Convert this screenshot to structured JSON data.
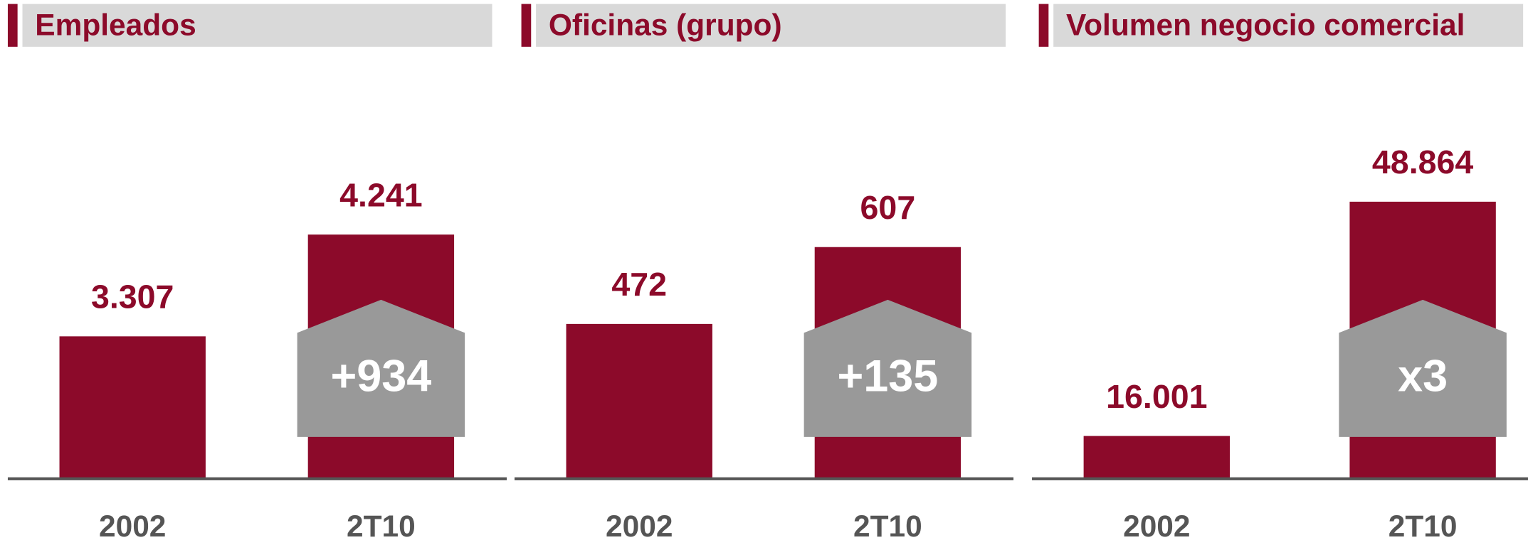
{
  "chart_data": [
    {
      "type": "bar",
      "title": "Empleados",
      "categories": [
        "2002",
        "2T10"
      ],
      "values": [
        3307,
        4241
      ],
      "value_labels": [
        "3.307",
        "4.241"
      ],
      "annotation": "+934",
      "color": "#8c0a2a",
      "ylim": [
        2000,
        5500
      ]
    },
    {
      "type": "bar",
      "title": "Oficinas (grupo)",
      "categories": [
        "2002",
        "2T10"
      ],
      "values": [
        472,
        607
      ],
      "annotation": "+135",
      "color": "#8c0a2a",
      "ylim": [
        200,
        870
      ]
    },
    {
      "type": "bar",
      "title": "Volumen negocio comercial",
      "categories": [
        "2002",
        "2T10"
      ],
      "values": [
        16001,
        48864
      ],
      "value_labels": [
        "16.001",
        "48.864"
      ],
      "annotation": "x3",
      "color": "#8c0a2a",
      "ylim": [
        10000,
        63500
      ]
    }
  ]
}
